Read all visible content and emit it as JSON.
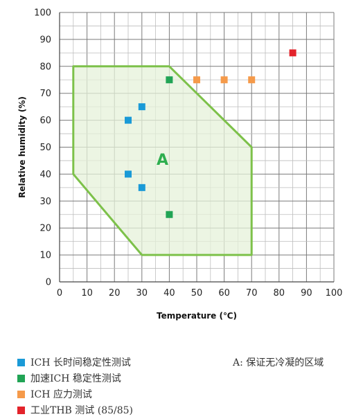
{
  "chart_data": {
    "type": "scatter",
    "xlabel": "Temperature (℃)",
    "ylabel": "Relative humidity (%)",
    "xlim": [
      0,
      100
    ],
    "ylim": [
      0,
      100
    ],
    "x_ticks": [
      "0",
      "10",
      "20",
      "30",
      "40",
      "50",
      "60",
      "70",
      "80",
      "90",
      "100"
    ],
    "y_ticks": [
      "0",
      "10",
      "20",
      "30",
      "40",
      "50",
      "60",
      "70",
      "80",
      "90",
      "100"
    ],
    "grid": true,
    "region": {
      "label": "A",
      "color": "#7dc14a",
      "fill": "#e6f1da",
      "polygon": [
        [
          5,
          80
        ],
        [
          40,
          80
        ],
        [
          70,
          50
        ],
        [
          70,
          10
        ],
        [
          30,
          10
        ],
        [
          5,
          40
        ]
      ]
    },
    "series": [
      {
        "name": "ICH 长时间稳定性测试",
        "color": "#1a9ad7",
        "points": [
          [
            30,
            65
          ],
          [
            25,
            60
          ],
          [
            25,
            40
          ],
          [
            30,
            35
          ]
        ]
      },
      {
        "name": "加速ICH 稳定性测试",
        "color": "#21a455",
        "points": [
          [
            40,
            75
          ],
          [
            40,
            25
          ]
        ]
      },
      {
        "name": "ICH 应力测试",
        "color": "#f59a4a",
        "points": [
          [
            50,
            75
          ],
          [
            60,
            75
          ],
          [
            70,
            75
          ]
        ]
      },
      {
        "name": "工业THB 测试 (85/85)",
        "color": "#e3232b",
        "points": [
          [
            85,
            85
          ]
        ]
      }
    ],
    "region_note": "A: 保证无冷凝的区域",
    "legend_position": "bottom-left"
  }
}
